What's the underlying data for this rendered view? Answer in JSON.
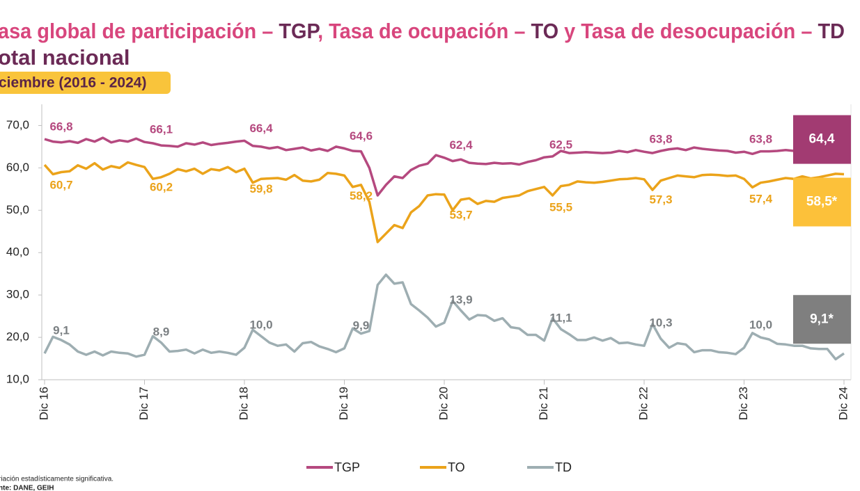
{
  "chart_data": {
    "type": "line",
    "title_parts": [
      {
        "text": "asa global de participación – ",
        "color": "#d8467d"
      },
      {
        "text": "TGP",
        "color": "#6b2a56"
      },
      {
        "text": ", Tasa de ocupación – ",
        "color": "#d8467d"
      },
      {
        "text": "TO",
        "color": "#6b2a56"
      },
      {
        "text": " y Tasa de desocupación – ",
        "color": "#d8467d"
      },
      {
        "text": "TD",
        "color": "#6b2a56"
      }
    ],
    "title_line2": "otal nacional",
    "subtitle": "ciembre (2016 - 2024)",
    "categories": [
      "Dic 16",
      null,
      null,
      null,
      null,
      null,
      null,
      null,
      null,
      null,
      null,
      null,
      "Dic 17",
      null,
      null,
      null,
      null,
      null,
      null,
      null,
      null,
      null,
      null,
      null,
      "Dic 18",
      null,
      null,
      null,
      null,
      null,
      null,
      null,
      null,
      null,
      null,
      null,
      "Dic 19",
      null,
      null,
      null,
      null,
      null,
      null,
      null,
      null,
      null,
      null,
      null,
      "Dic 20",
      null,
      null,
      null,
      null,
      null,
      null,
      null,
      null,
      null,
      null,
      null,
      "Dic 21",
      null,
      null,
      null,
      null,
      null,
      null,
      null,
      null,
      null,
      null,
      null,
      "Dic 22",
      null,
      null,
      null,
      null,
      null,
      null,
      null,
      null,
      null,
      null,
      null,
      "Dic 23",
      null,
      null,
      null,
      null,
      null,
      null,
      null,
      null,
      null,
      null,
      null,
      "Dic 24"
    ],
    "series": [
      {
        "name": "TGP",
        "color": "#b5497f",
        "box_color": "#a23b72",
        "label_position": "above",
        "values": [
          66.8,
          66.2,
          66.0,
          66.3,
          65.9,
          66.8,
          66.2,
          67.1,
          66.0,
          66.5,
          66.2,
          66.9,
          66.1,
          65.8,
          65.3,
          65.2,
          65.0,
          65.8,
          65.5,
          66.0,
          65.4,
          65.7,
          65.9,
          66.2,
          66.4,
          65.2,
          65.0,
          64.6,
          64.9,
          64.2,
          64.5,
          64.8,
          64.1,
          64.5,
          64.0,
          65.0,
          64.6,
          64.0,
          63.9,
          60.0,
          53.5,
          56.0,
          58.0,
          57.6,
          59.5,
          60.5,
          61.0,
          63.0,
          62.4,
          61.6,
          62.0,
          61.2,
          61.0,
          60.9,
          61.2,
          61.0,
          61.1,
          60.8,
          61.4,
          61.8,
          62.5,
          62.7,
          64.0,
          63.5,
          63.6,
          63.7,
          63.6,
          63.5,
          63.6,
          64.0,
          63.7,
          64.2,
          63.8,
          63.5,
          64.0,
          64.4,
          64.6,
          64.2,
          64.8,
          64.5,
          64.3,
          64.1,
          64.0,
          63.6,
          63.8,
          63.3,
          63.9,
          63.9,
          64.0,
          64.2,
          64.0,
          64.6,
          63.7,
          64.0,
          63.6,
          64.0,
          64.4
        ],
        "value_labels": [
          "66,8",
          null,
          null,
          null,
          null,
          null,
          null,
          null,
          null,
          null,
          null,
          null,
          "66,1",
          null,
          null,
          null,
          null,
          null,
          null,
          null,
          null,
          null,
          null,
          null,
          "66,4",
          null,
          null,
          null,
          null,
          null,
          null,
          null,
          null,
          null,
          null,
          null,
          "64,6",
          null,
          null,
          null,
          null,
          null,
          null,
          null,
          null,
          null,
          null,
          null,
          "62,4",
          null,
          null,
          null,
          null,
          null,
          null,
          null,
          null,
          null,
          null,
          null,
          "62,5",
          null,
          null,
          null,
          null,
          null,
          null,
          null,
          null,
          null,
          null,
          null,
          "63,8",
          null,
          null,
          null,
          null,
          null,
          null,
          null,
          null,
          null,
          null,
          null,
          "63,8",
          null,
          null,
          null,
          null,
          null,
          null,
          null,
          null,
          null,
          null,
          null,
          "64,4"
        ]
      },
      {
        "name": "TO",
        "color": "#eba31a",
        "box_color": "#fcc13a",
        "label_position": "below",
        "values": [
          60.7,
          58.5,
          59.0,
          59.2,
          60.6,
          59.8,
          61.1,
          59.6,
          60.4,
          60.0,
          61.3,
          60.7,
          60.2,
          57.4,
          57.8,
          58.6,
          59.7,
          59.2,
          59.8,
          58.6,
          59.7,
          59.4,
          60.2,
          59.0,
          59.8,
          56.5,
          57.4,
          57.5,
          57.6,
          57.2,
          58.3,
          57.0,
          56.8,
          57.2,
          58.8,
          58.6,
          58.2,
          55.5,
          56.0,
          52.0,
          42.5,
          44.5,
          46.5,
          45.8,
          49.5,
          51.0,
          53.5,
          53.8,
          53.7,
          50.0,
          52.5,
          52.8,
          51.5,
          52.2,
          52.0,
          52.9,
          53.2,
          53.5,
          54.5,
          55.0,
          55.5,
          53.5,
          55.7,
          56.0,
          56.8,
          56.6,
          56.5,
          56.7,
          57.0,
          57.3,
          57.4,
          57.6,
          57.3,
          54.8,
          57.0,
          57.6,
          58.2,
          58.0,
          57.8,
          58.3,
          58.4,
          58.3,
          58.1,
          58.2,
          57.4,
          55.4,
          56.5,
          56.8,
          57.2,
          57.6,
          57.4,
          58.0,
          57.5,
          57.8,
          58.2,
          58.6,
          58.5
        ],
        "value_labels": [
          "60,7",
          null,
          null,
          null,
          null,
          null,
          null,
          null,
          null,
          null,
          null,
          null,
          "60,2",
          null,
          null,
          null,
          null,
          null,
          null,
          null,
          null,
          null,
          null,
          null,
          "59,8",
          null,
          null,
          null,
          null,
          null,
          null,
          null,
          null,
          null,
          null,
          null,
          "58,2",
          null,
          null,
          null,
          null,
          null,
          null,
          null,
          null,
          null,
          null,
          null,
          "53,7",
          null,
          null,
          null,
          null,
          null,
          null,
          null,
          null,
          null,
          null,
          null,
          "55,5",
          null,
          null,
          null,
          null,
          null,
          null,
          null,
          null,
          null,
          null,
          null,
          "57,3",
          null,
          null,
          null,
          null,
          null,
          null,
          null,
          null,
          null,
          null,
          null,
          "57,4",
          null,
          null,
          null,
          null,
          null,
          null,
          null,
          null,
          null,
          null,
          null,
          "58,5*"
        ]
      },
      {
        "name": "TD",
        "color": "#9eaeb2",
        "box_color": "#7f7f7f",
        "label_position": "above",
        "label_color": "#7a7f82",
        "axis": "y2",
        "values": [
          9.1,
          11.7,
          11.2,
          10.5,
          9.4,
          8.9,
          9.4,
          8.8,
          9.4,
          9.2,
          9.1,
          8.6,
          8.9,
          11.8,
          10.8,
          9.4,
          9.5,
          9.7,
          9.1,
          9.7,
          9.2,
          9.4,
          9.2,
          8.9,
          10.0,
          12.8,
          11.8,
          10.8,
          10.3,
          10.5,
          9.4,
          10.7,
          10.9,
          10.2,
          9.8,
          9.3,
          9.9,
          13.0,
          12.2,
          12.6,
          19.8,
          21.4,
          20.0,
          20.2,
          16.8,
          15.8,
          14.7,
          13.3,
          13.9,
          17.3,
          15.8,
          14.4,
          15.1,
          15.0,
          14.2,
          14.6,
          13.2,
          13.0,
          12.0,
          12.0,
          11.1,
          14.6,
          12.9,
          12.1,
          11.2,
          11.2,
          11.6,
          11.1,
          11.5,
          10.7,
          10.8,
          10.5,
          10.3,
          13.7,
          11.4,
          10.0,
          10.7,
          10.5,
          9.3,
          9.6,
          9.6,
          9.3,
          9.2,
          9.0,
          10.0,
          12.3,
          11.6,
          11.3,
          10.6,
          10.5,
          10.3,
          10.3,
          9.9,
          9.8,
          9.8,
          8.2,
          9.1
        ],
        "value_labels": [
          "9,1",
          null,
          null,
          null,
          null,
          null,
          null,
          null,
          null,
          null,
          null,
          null,
          "8,9",
          null,
          null,
          null,
          null,
          null,
          null,
          null,
          null,
          null,
          null,
          null,
          "10,0",
          null,
          null,
          null,
          null,
          null,
          null,
          null,
          null,
          null,
          null,
          null,
          "9,9",
          null,
          null,
          null,
          null,
          null,
          null,
          null,
          null,
          null,
          null,
          null,
          "13,9",
          null,
          null,
          null,
          null,
          null,
          null,
          null,
          null,
          null,
          null,
          null,
          "11,1",
          null,
          null,
          null,
          null,
          null,
          null,
          null,
          null,
          null,
          null,
          null,
          "10,3",
          null,
          null,
          null,
          null,
          null,
          null,
          null,
          null,
          null,
          null,
          null,
          "10,0",
          null,
          null,
          null,
          null,
          null,
          null,
          null,
          null,
          null,
          null,
          null,
          "9,1*"
        ]
      }
    ],
    "ylim": [
      10,
      75
    ],
    "yticks": [
      {
        "value": 10,
        "label": "10,0"
      },
      {
        "value": 20,
        "label": "20,0"
      },
      {
        "value": 30,
        "label": "30,0"
      },
      {
        "value": 40,
        "label": "40,0"
      },
      {
        "value": 50,
        "label": "50,0"
      },
      {
        "value": 60,
        "label": "60,0"
      },
      {
        "value": 70,
        "label": "70,0"
      }
    ],
    "y2lim": [
      5,
      48
    ],
    "grid": false,
    "legend": "bottom",
    "footnotes": [
      "riación estadísticamente significativa.",
      "nte: DANE, GEIH"
    ]
  }
}
